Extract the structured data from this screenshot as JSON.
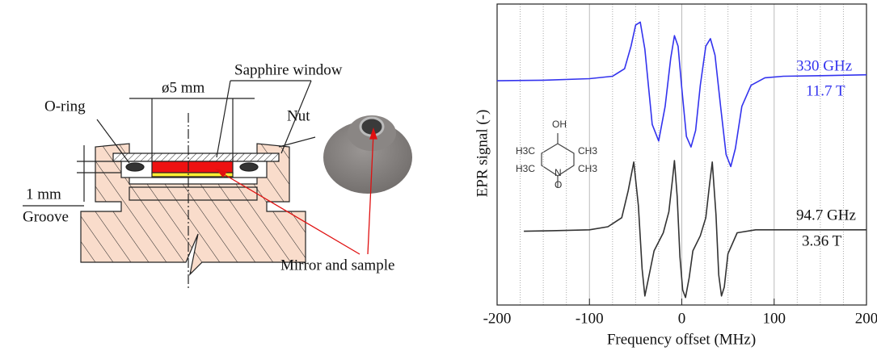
{
  "diagram": {
    "labels": [
      "Sapphire window",
      "ø5 mm",
      "O-ring",
      "Nut",
      "1 mm",
      "Groove",
      "Mirror and sample"
    ]
  },
  "chart_data": {
    "type": "line",
    "ylabel": "EPR signal (-)",
    "xlabel": "Frequency offset (MHz)",
    "xlim": [
      -200,
      200
    ],
    "xticks": [
      -200,
      -100,
      0,
      100,
      200
    ],
    "x_minor_ticks": [
      -175,
      -150,
      -125,
      -75,
      -50,
      -25,
      25,
      50,
      75,
      125,
      150,
      175
    ],
    "ylim": [
      0,
      10
    ],
    "grid": true,
    "series": [
      {
        "name": "330 GHz",
        "color": "#3333ee",
        "x": [
          -200,
          -150,
          -100,
          -75,
          -62,
          -55,
          -50,
          -45,
          -40,
          -32,
          -25,
          -18,
          -12,
          -8,
          -4,
          0,
          5,
          10,
          15,
          20,
          26,
          31,
          36,
          42,
          48,
          53,
          58,
          65,
          75,
          90,
          110,
          150,
          200
        ],
        "values": [
          7.45,
          7.47,
          7.52,
          7.6,
          7.85,
          8.6,
          9.3,
          9.4,
          8.5,
          6.0,
          5.45,
          6.6,
          8.2,
          8.95,
          8.6,
          7.2,
          5.6,
          5.25,
          5.8,
          7.3,
          8.6,
          8.85,
          8.3,
          6.6,
          5.0,
          4.6,
          5.2,
          6.6,
          7.3,
          7.55,
          7.6,
          7.62,
          7.65
        ]
      },
      {
        "name": "94.7 GHz",
        "color": "#333333",
        "x": [
          -171,
          -140,
          -100,
          -80,
          -65,
          -58,
          -52,
          -47,
          -43,
          -40,
          -36,
          -30,
          -20,
          -14,
          -10,
          -8,
          -5,
          -2,
          1,
          4,
          8,
          12,
          20,
          26,
          30,
          33,
          37,
          40,
          43,
          46,
          50,
          60,
          80,
          120,
          160,
          200
        ],
        "values": [
          2.45,
          2.47,
          2.5,
          2.6,
          2.9,
          3.8,
          4.75,
          3.3,
          1.2,
          0.3,
          0.9,
          1.8,
          2.4,
          3.1,
          4.2,
          4.8,
          3.6,
          1.6,
          0.5,
          0.25,
          0.9,
          1.8,
          2.3,
          2.9,
          4.0,
          4.75,
          3.0,
          1.0,
          0.3,
          0.6,
          1.7,
          2.4,
          2.5,
          2.5,
          2.5,
          2.5
        ]
      }
    ],
    "annotations": [
      "11.7 T",
      "3.36 T"
    ],
    "molecule_labels": [
      "OH",
      "N",
      "O",
      "H3C",
      "CH3",
      "H3C",
      "CH3"
    ]
  }
}
